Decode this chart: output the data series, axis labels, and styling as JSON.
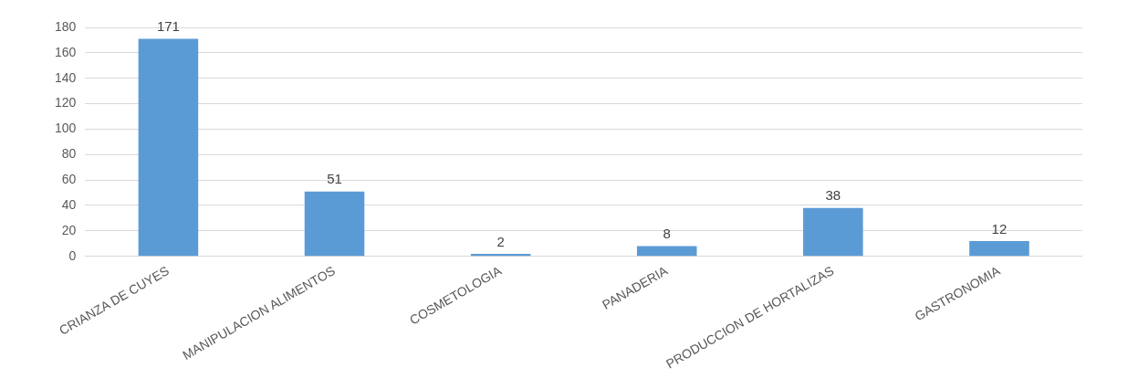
{
  "chart_data": {
    "type": "bar",
    "categories": [
      "CRIANZA DE CUYES",
      "MANIPULACION ALIMENTOS",
      "COSMETOLOGIA",
      "PANADERIA",
      "PRODUCCION DE HORTALIZAS",
      "GASTRONOMIA"
    ],
    "values": [
      171,
      51,
      2,
      8,
      38,
      12
    ],
    "color": "#5b9bd5",
    "ylim": [
      0,
      180
    ],
    "yticks": [
      0,
      20,
      40,
      60,
      80,
      100,
      120,
      140,
      160,
      180
    ],
    "grid": "y",
    "data_labels": true
  }
}
